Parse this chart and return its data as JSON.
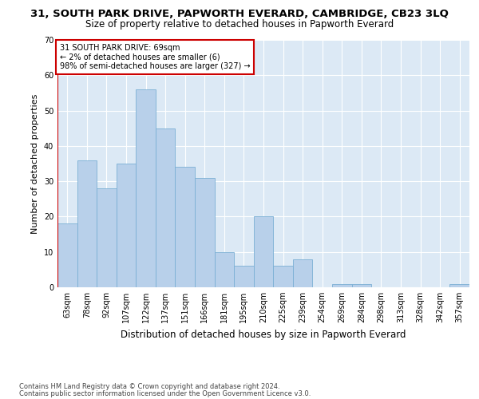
{
  "title": "31, SOUTH PARK DRIVE, PAPWORTH EVERARD, CAMBRIDGE, CB23 3LQ",
  "subtitle": "Size of property relative to detached houses in Papworth Everard",
  "xlabel": "Distribution of detached houses by size in Papworth Everard",
  "ylabel": "Number of detached properties",
  "footer_line1": "Contains HM Land Registry data © Crown copyright and database right 2024.",
  "footer_line2": "Contains public sector information licensed under the Open Government Licence v3.0.",
  "annotation_title": "31 SOUTH PARK DRIVE: 69sqm",
  "annotation_line2": "← 2% of detached houses are smaller (6)",
  "annotation_line3": "98% of semi-detached houses are larger (327) →",
  "bar_color": "#b8d0ea",
  "bar_edge_color": "#7bafd4",
  "highlight_color": "#cc0000",
  "bg_color": "#dce9f5",
  "grid_color": "#ffffff",
  "categories": [
    "63sqm",
    "78sqm",
    "92sqm",
    "107sqm",
    "122sqm",
    "137sqm",
    "151sqm",
    "166sqm",
    "181sqm",
    "195sqm",
    "210sqm",
    "225sqm",
    "239sqm",
    "254sqm",
    "269sqm",
    "284sqm",
    "298sqm",
    "313sqm",
    "328sqm",
    "342sqm",
    "357sqm"
  ],
  "values": [
    18,
    36,
    28,
    35,
    56,
    45,
    34,
    31,
    10,
    6,
    20,
    6,
    8,
    0,
    1,
    1,
    0,
    0,
    0,
    0,
    1
  ],
  "ylim": [
    0,
    70
  ],
  "yticks": [
    0,
    10,
    20,
    30,
    40,
    50,
    60,
    70
  ],
  "red_line_x": -0.5,
  "title_fontsize": 9.5,
  "subtitle_fontsize": 8.5,
  "tick_fontsize": 7,
  "ylabel_fontsize": 8,
  "xlabel_fontsize": 8.5,
  "footer_fontsize": 6,
  "annotation_fontsize": 7
}
